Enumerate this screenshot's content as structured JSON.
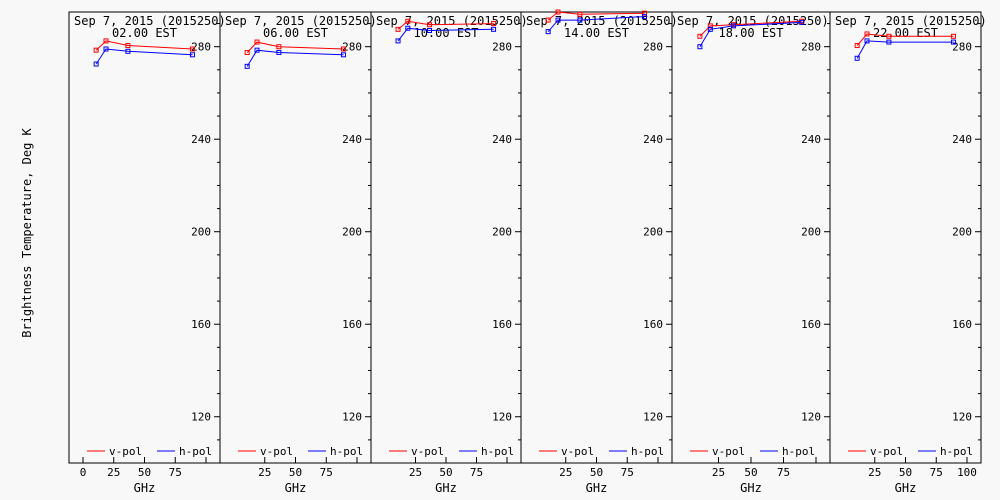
{
  "chart_data": {
    "type": "line",
    "ylabel": "Brightness Temperature, Deg K",
    "xlabel": "GHz",
    "xlim": [
      0,
      100
    ],
    "ylim": [
      100,
      295
    ],
    "xticks": [
      "0",
      "25",
      "50",
      "75",
      "100"
    ],
    "yticks": [
      "120",
      "160",
      "200",
      "240",
      "280"
    ],
    "colors": {
      "v-pol": "#ff0000",
      "h-pol": "#0000ff"
    },
    "legend": {
      "position": "bottom",
      "labels": [
        "v-pol",
        "h-pol"
      ]
    },
    "panels": [
      {
        "title": "Sep  7, 2015 (2015250)",
        "subtitle": "02.00 EST",
        "x": [
          10.7,
          18.7,
          36.5,
          89.0
        ],
        "series": [
          {
            "name": "v-pol",
            "values": [
              278.5,
              282.5,
              280.5,
              279.0
            ]
          },
          {
            "name": "h-pol",
            "values": [
              272.5,
              279.0,
              278.0,
              276.5
            ]
          }
        ]
      },
      {
        "title": "Sep  7, 2015 (2015250)",
        "subtitle": "06.00 EST",
        "x": [
          10.7,
          18.7,
          36.5,
          89.0
        ],
        "series": [
          {
            "name": "v-pol",
            "values": [
              277.5,
              282.0,
              280.0,
              279.0
            ]
          },
          {
            "name": "h-pol",
            "values": [
              271.5,
              278.5,
              277.5,
              276.5
            ]
          }
        ]
      },
      {
        "title": "Sep  7, 2015 (2015250)",
        "subtitle": "10.00 EST",
        "x": [
          10.7,
          18.7,
          36.5,
          89.0
        ],
        "series": [
          {
            "name": "v-pol",
            "values": [
              287.5,
              291.0,
              289.5,
              290.0
            ]
          },
          {
            "name": "h-pol",
            "values": [
              282.5,
              288.0,
              287.0,
              287.5
            ]
          }
        ]
      },
      {
        "title": "Sep  7, 2015 (2015250)",
        "subtitle": "14.00 EST",
        "x": [
          10.7,
          18.7,
          36.5,
          89.0
        ],
        "series": [
          {
            "name": "v-pol",
            "values": [
              291.5,
              295.0,
              294.0,
              294.5
            ]
          },
          {
            "name": "h-pol",
            "values": [
              286.5,
              291.5,
              291.5,
              293.0
            ]
          }
        ]
      },
      {
        "title": "Sep  7, 2015 (2015250)",
        "subtitle": "18.00 EST",
        "x": [
          10.7,
          18.7,
          36.5,
          89.0
        ],
        "series": [
          {
            "name": "v-pol",
            "values": [
              284.5,
              289.0,
              289.5,
              291.0
            ]
          },
          {
            "name": "h-pol",
            "values": [
              280.0,
              287.5,
              289.0,
              290.5
            ]
          }
        ]
      },
      {
        "title": "Sep  7, 2015 (2015250)",
        "subtitle": "22.00 EST",
        "x": [
          10.7,
          18.7,
          36.5,
          89.0
        ],
        "series": [
          {
            "name": "v-pol",
            "values": [
              280.5,
              285.5,
              284.5,
              284.5
            ]
          },
          {
            "name": "h-pol",
            "values": [
              275.0,
              282.5,
              282.0,
              282.0
            ]
          }
        ]
      }
    ]
  }
}
